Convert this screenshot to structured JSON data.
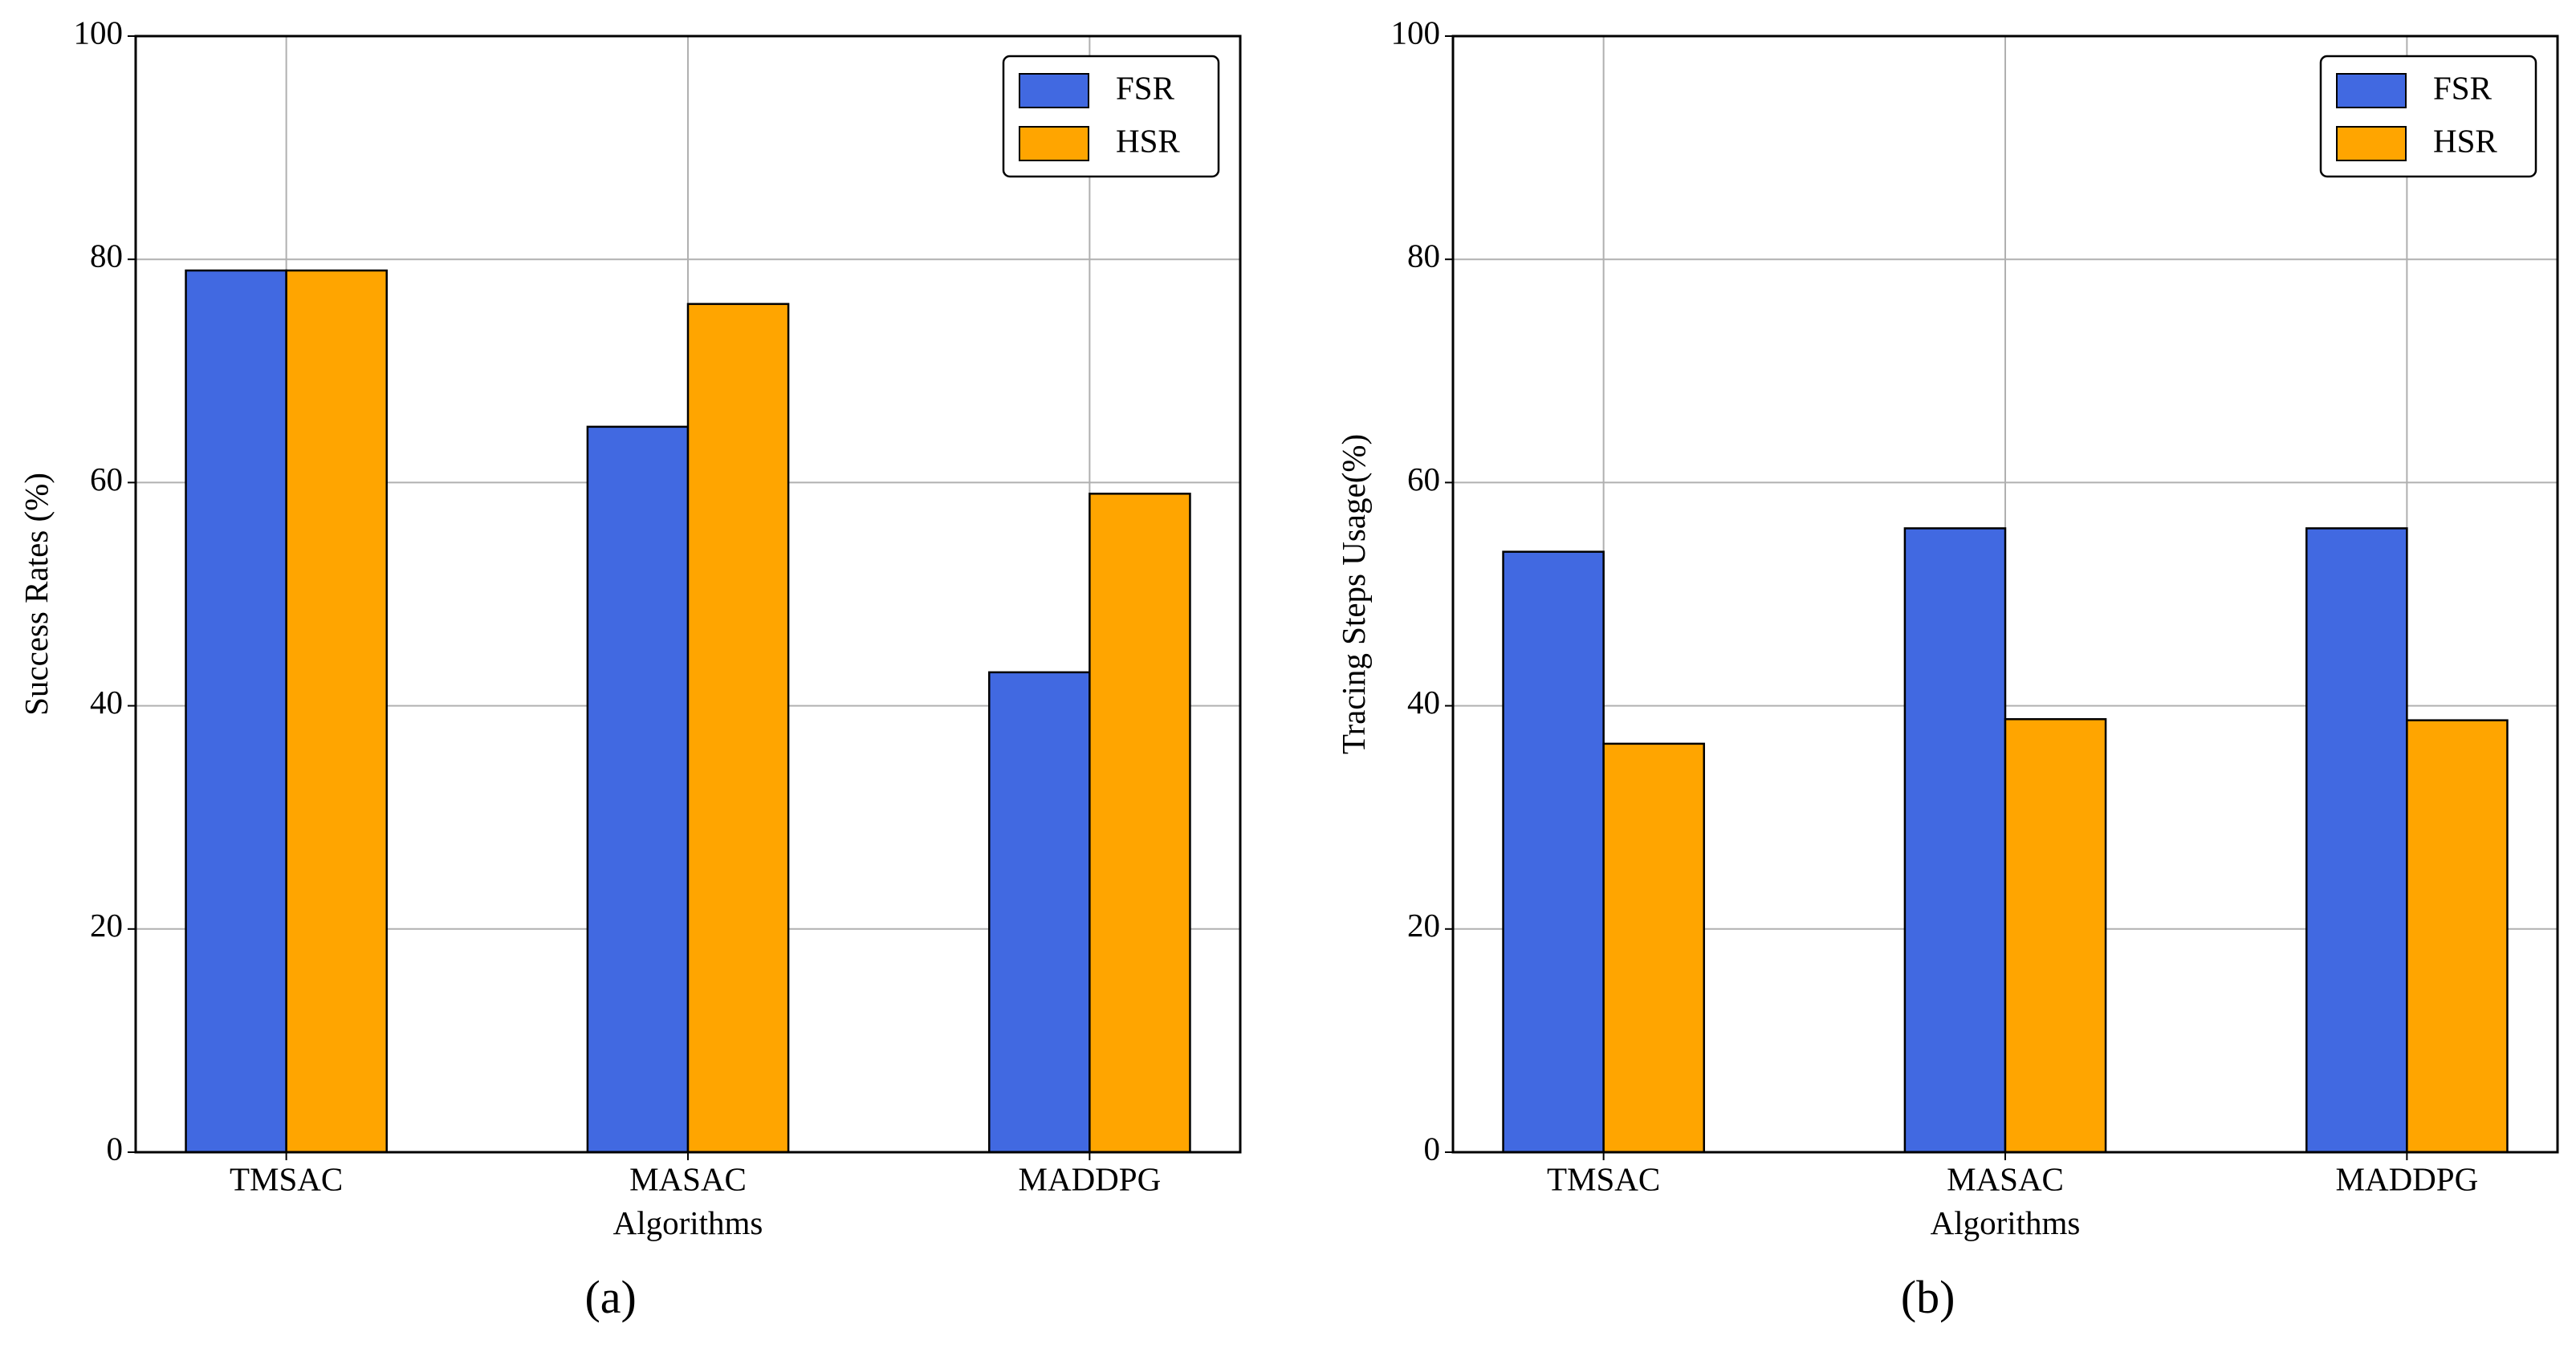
{
  "chart_data": [
    {
      "type": "bar",
      "caption": "(a)",
      "xlabel": "Algorithms",
      "ylabel": "Success Rates (%)",
      "categories": [
        "TMSAC",
        "MASAC",
        "MADDPG"
      ],
      "series": [
        {
          "name": "FSR",
          "color": "#4169e1",
          "values": [
            79,
            65,
            43
          ]
        },
        {
          "name": "HSR",
          "color": "#ffa500",
          "values": [
            79,
            76,
            59
          ]
        }
      ],
      "ylim": [
        0,
        100
      ],
      "yticks": [
        0,
        20,
        40,
        60,
        80,
        100
      ],
      "grid": true,
      "legend": "upper right"
    },
    {
      "type": "bar",
      "caption": "(b)",
      "xlabel": "Algorithms",
      "ylabel": "Tracing Steps Usage(%)",
      "categories": [
        "TMSAC",
        "MASAC",
        "MADDPG"
      ],
      "series": [
        {
          "name": "FSR",
          "color": "#4169e1",
          "values": [
            53.8,
            55.9,
            55.9
          ]
        },
        {
          "name": "HSR",
          "color": "#ffa500",
          "values": [
            36.6,
            38.8,
            38.7
          ]
        }
      ],
      "ylim": [
        0,
        100
      ],
      "yticks": [
        0,
        20,
        40,
        60,
        80,
        100
      ],
      "grid": true,
      "legend": "upper right"
    }
  ]
}
